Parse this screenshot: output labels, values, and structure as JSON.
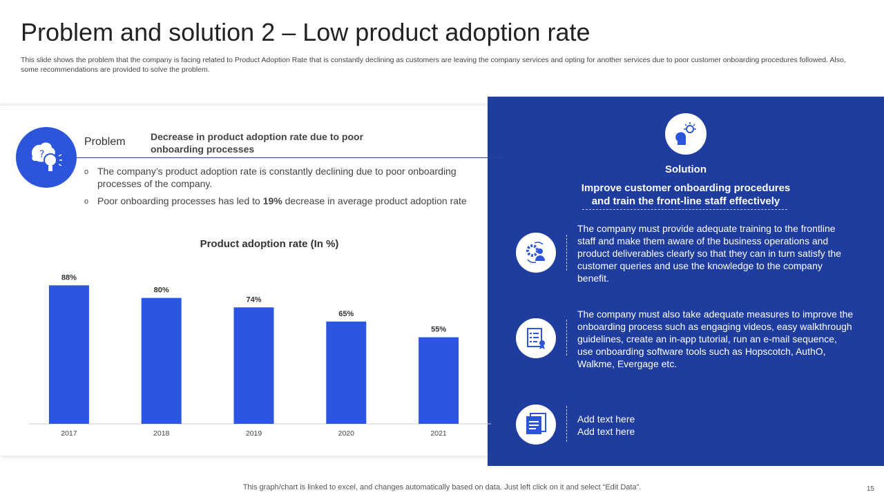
{
  "title": "Problem and solution 2 – Low product adoption rate",
  "subtitle": "This slide shows the problem that the company is facing related to Product Adoption Rate that is constantly declining as customers are leaving the company services and opting for another services due to poor customer onboarding procedures followed. Also, some recommendations are provided to solve the problem.",
  "problem": {
    "label": "Problem",
    "heading": "Decrease in product adoption rate due to poor onboarding processes",
    "bullets": [
      {
        "text": "The company’s product adoption rate is constantly declining due to poor onboarding processes of the company."
      },
      {
        "pre": "Poor onboarding processes has led to ",
        "bold": "19%",
        "post": " decrease in average product adoption rate"
      }
    ]
  },
  "chart_data": {
    "type": "bar",
    "title": "Product adoption rate (In %)",
    "categories": [
      "2017",
      "2018",
      "2019",
      "2020",
      "2021"
    ],
    "values": [
      88,
      80,
      74,
      65,
      55
    ],
    "labels": [
      "88%",
      "80%",
      "74%",
      "65%",
      "55%"
    ],
    "xlabel": "",
    "ylabel": "",
    "ylim": [
      0,
      100
    ],
    "grid": false,
    "bar_color": "#2c55e2"
  },
  "solution": {
    "label": "Solution",
    "heading_line1": "Improve customer onboarding procedures",
    "heading_line2": "and train the front-line staff effectively",
    "items": [
      {
        "icon": "gear-user-icon",
        "text": "The company must provide adequate training to the frontline staff and make them aware of the business operations and product deliverables clearly so that they can in turn satisfy the customer queries and use the knowledge to the company benefit."
      },
      {
        "icon": "checklist-icon",
        "text": "The company must also take adequate measures to improve the onboarding process such as engaging videos, easy walkthrough guidelines, create an in-app tutorial, run an e-mail sequence, use onboarding software tools such as Hopscotch, AuthO, Walkme, Evergage etc."
      },
      {
        "icon": "document-icon",
        "line1": "Add text here",
        "line2": "Add text here"
      }
    ]
  },
  "footer": "This graph/chart is linked to excel, and changes automatically based on data. Just left click on it and select “Edit Data”.",
  "page_number": "15",
  "colors": {
    "panel": "#1e3d9e",
    "accent": "#2c55dc"
  }
}
